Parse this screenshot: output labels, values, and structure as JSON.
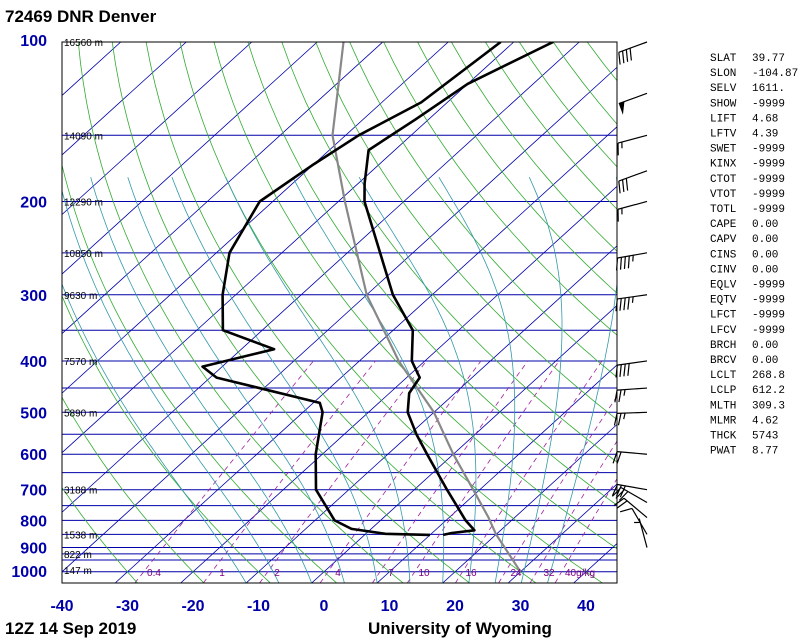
{
  "header": {
    "title": "72469 DNR Denver"
  },
  "footer": {
    "time": "12Z 14 Sep 2019",
    "source": "University of Wyoming"
  },
  "chart_data": {
    "type": "skew-t",
    "temp_axis": {
      "ticks": [
        -40,
        -30,
        -20,
        -10,
        0,
        10,
        20,
        30,
        40
      ]
    },
    "pressure_axis": {
      "ticks": [
        100,
        200,
        300,
        400,
        500,
        600,
        700,
        800,
        900,
        1000
      ],
      "scale": "log"
    },
    "heights": [
      {
        "p": 100,
        "label": "16560 m"
      },
      {
        "p": 150,
        "label": "14090 m"
      },
      {
        "p": 200,
        "label": "12290 m"
      },
      {
        "p": 250,
        "label": "10850 m"
      },
      {
        "p": 300,
        "label": "9630 m"
      },
      {
        "p": 400,
        "label": "7570 m"
      },
      {
        "p": 500,
        "label": "5890 m"
      },
      {
        "p": 700,
        "label": "3188 m"
      },
      {
        "p": 850,
        "label": "1538 m"
      },
      {
        "p": 925,
        "label": "822 m"
      },
      {
        "p": 1000,
        "label": "147 m"
      }
    ],
    "mixing_ratio_labels": [
      "0.4",
      "1",
      "2",
      "4",
      "7",
      "10",
      "16",
      "24",
      "32",
      "40g/kg"
    ],
    "temperature": [
      [
        100,
        -54
      ],
      [
        120,
        -60
      ],
      [
        140,
        -62
      ],
      [
        160,
        -64
      ],
      [
        185,
        -59
      ],
      [
        200,
        -56
      ],
      [
        250,
        -45
      ],
      [
        300,
        -36
      ],
      [
        350,
        -27
      ],
      [
        400,
        -22
      ],
      [
        430,
        -18
      ],
      [
        460,
        -17
      ],
      [
        500,
        -14
      ],
      [
        550,
        -9
      ],
      [
        600,
        -4
      ],
      [
        700,
        5
      ],
      [
        800,
        13
      ],
      [
        835,
        16
      ],
      [
        845,
        13
      ],
      [
        852,
        12
      ]
    ],
    "dewpoint": [
      [
        100,
        -62
      ],
      [
        130,
        -64
      ],
      [
        150,
        -68
      ],
      [
        170,
        -70
      ],
      [
        200,
        -72
      ],
      [
        250,
        -68
      ],
      [
        300,
        -62
      ],
      [
        350,
        -56
      ],
      [
        380,
        -45
      ],
      [
        410,
        -53
      ],
      [
        430,
        -49
      ],
      [
        480,
        -29
      ],
      [
        500,
        -27
      ],
      [
        600,
        -21
      ],
      [
        700,
        -15
      ],
      [
        800,
        -7
      ],
      [
        830,
        -3
      ],
      [
        848,
        3
      ],
      [
        852,
        10
      ]
    ],
    "parcel": [
      [
        1000,
        30
      ],
      [
        850,
        20
      ],
      [
        790,
        16
      ],
      [
        700,
        9
      ],
      [
        600,
        0
      ],
      [
        500,
        -10
      ],
      [
        400,
        -24
      ],
      [
        300,
        -40
      ],
      [
        200,
        -59
      ],
      [
        150,
        -72
      ],
      [
        100,
        -86
      ]
    ],
    "wind_barbs": [
      {
        "p": 100,
        "dir": 250,
        "spd": 40
      },
      {
        "p": 125,
        "dir": 250,
        "spd": 50
      },
      {
        "p": 150,
        "dir": 255,
        "spd": 15
      },
      {
        "p": 175,
        "dir": 250,
        "spd": 30
      },
      {
        "p": 200,
        "dir": 255,
        "spd": 15
      },
      {
        "p": 250,
        "dir": 260,
        "spd": 45
      },
      {
        "p": 300,
        "dir": 262,
        "spd": 45
      },
      {
        "p": 400,
        "dir": 262,
        "spd": 40
      },
      {
        "p": 450,
        "dir": 266,
        "spd": 25
      },
      {
        "p": 500,
        "dir": 268,
        "spd": 25
      },
      {
        "p": 600,
        "dir": 275,
        "spd": 20
      },
      {
        "p": 700,
        "dir": 280,
        "spd": 30
      },
      {
        "p": 740,
        "dir": 300,
        "spd": 30
      },
      {
        "p": 790,
        "dir": 310,
        "spd": 20
      },
      {
        "p": 850,
        "dir": 330,
        "spd": 10
      },
      {
        "p": 900,
        "dir": 345,
        "spd": 5
      }
    ]
  },
  "indices": [
    {
      "key": "SLAT",
      "value": "39.77"
    },
    {
      "key": "SLON",
      "value": "-104.87"
    },
    {
      "key": "SELV",
      "value": "1611."
    },
    {
      "key": "SHOW",
      "value": "-9999"
    },
    {
      "key": "LIFT",
      "value": "4.68"
    },
    {
      "key": "LFTV",
      "value": "4.39"
    },
    {
      "key": "SWET",
      "value": "-9999"
    },
    {
      "key": "KINX",
      "value": "-9999"
    },
    {
      "key": "CTOT",
      "value": "-9999"
    },
    {
      "key": "VTOT",
      "value": "-9999"
    },
    {
      "key": "TOTL",
      "value": "-9999"
    },
    {
      "key": "CAPE",
      "value": "0.00"
    },
    {
      "key": "CAPV",
      "value": "0.00"
    },
    {
      "key": "CINS",
      "value": "0.00"
    },
    {
      "key": "CINV",
      "value": "0.00"
    },
    {
      "key": "EQLV",
      "value": "-9999"
    },
    {
      "key": "EQTV",
      "value": "-9999"
    },
    {
      "key": "LFCT",
      "value": "-9999"
    },
    {
      "key": "LFCV",
      "value": "-9999"
    },
    {
      "key": "BRCH",
      "value": "0.00"
    },
    {
      "key": "BRCV",
      "value": "0.00"
    },
    {
      "key": "LCLT",
      "value": "268.8"
    },
    {
      "key": "LCLP",
      "value": "612.2"
    },
    {
      "key": "MLTH",
      "value": "309.3"
    },
    {
      "key": "MLMR",
      "value": "4.62"
    },
    {
      "key": "THCK",
      "value": "5743"
    },
    {
      "key": "PWAT",
      "value": "8.77"
    }
  ]
}
